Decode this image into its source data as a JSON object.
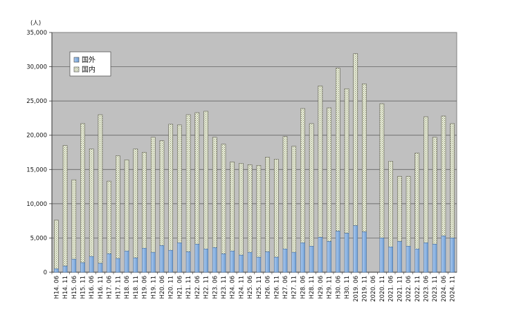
{
  "chart_data": {
    "type": "bar",
    "stacked": true,
    "unit_label": "(人)",
    "ylim": [
      0,
      35000
    ],
    "yticks": [
      0,
      5000,
      10000,
      15000,
      20000,
      25000,
      30000,
      35000
    ],
    "ytick_labels": [
      "0",
      "5,000",
      "10,000",
      "15,000",
      "20,000",
      "25,000",
      "30,000",
      "35,000"
    ],
    "grid": true,
    "legend_position": "top-left",
    "categories": [
      "H14. 06",
      "H14. 11",
      "H15. 06",
      "H15. 11",
      "H16. 06",
      "H16. 11",
      "H17. 06",
      "H17. 11",
      "H18. 06",
      "H18. 11",
      "H19. 06",
      "H19. 11",
      "H20. 06",
      "H20. 11",
      "H21. 06",
      "H21. 11",
      "H22. 06",
      "H22. 11",
      "H23. 06",
      "H23. 11",
      "H24. 06",
      "H24. 11",
      "H25. 06",
      "H25. 11",
      "H26. 06",
      "H26. 11",
      "H27. 06",
      "H27. 11",
      "H28. 06",
      "H28. 11",
      "H29. 06",
      "H29. 11",
      "H30. 06",
      "H30. 11",
      "2019. 06",
      "2019. 11",
      "2020. 06",
      "2020. 11",
      "2021. 06",
      "2021. 11",
      "2022. 06",
      "2022. 11",
      "2023. 06",
      "2023. 11",
      "2024. 06",
      "2024. 11"
    ],
    "series": [
      {
        "name": "国外",
        "color": "#8db4e2",
        "values": [
          500,
          900,
          1900,
          1400,
          2300,
          1300,
          2700,
          2000,
          3100,
          2100,
          3500,
          2900,
          3900,
          3200,
          4300,
          3000,
          4100,
          3400,
          3600,
          2700,
          3100,
          2500,
          2900,
          2200,
          3000,
          2200,
          3400,
          2900,
          4300,
          3800,
          5100,
          4500,
          6000,
          5700,
          6800,
          5900,
          null,
          5000,
          3700,
          4500,
          3800,
          3400,
          4300,
          4100,
          5300,
          5000
        ]
      },
      {
        "name": "国内",
        "color": "#ebf1de",
        "values": [
          7100,
          17600,
          11600,
          20300,
          15700,
          21700,
          10600,
          15000,
          13300,
          15900,
          14000,
          16800,
          15300,
          18400,
          17200,
          20000,
          19200,
          20100,
          16100,
          16000,
          13000,
          13400,
          12800,
          13400,
          13800,
          14300,
          16400,
          15500,
          19600,
          17900,
          22100,
          19500,
          23800,
          21100,
          25100,
          21600,
          null,
          19600,
          12500,
          9500,
          10200,
          14000,
          18400,
          15600,
          17500,
          16700
        ]
      }
    ]
  }
}
